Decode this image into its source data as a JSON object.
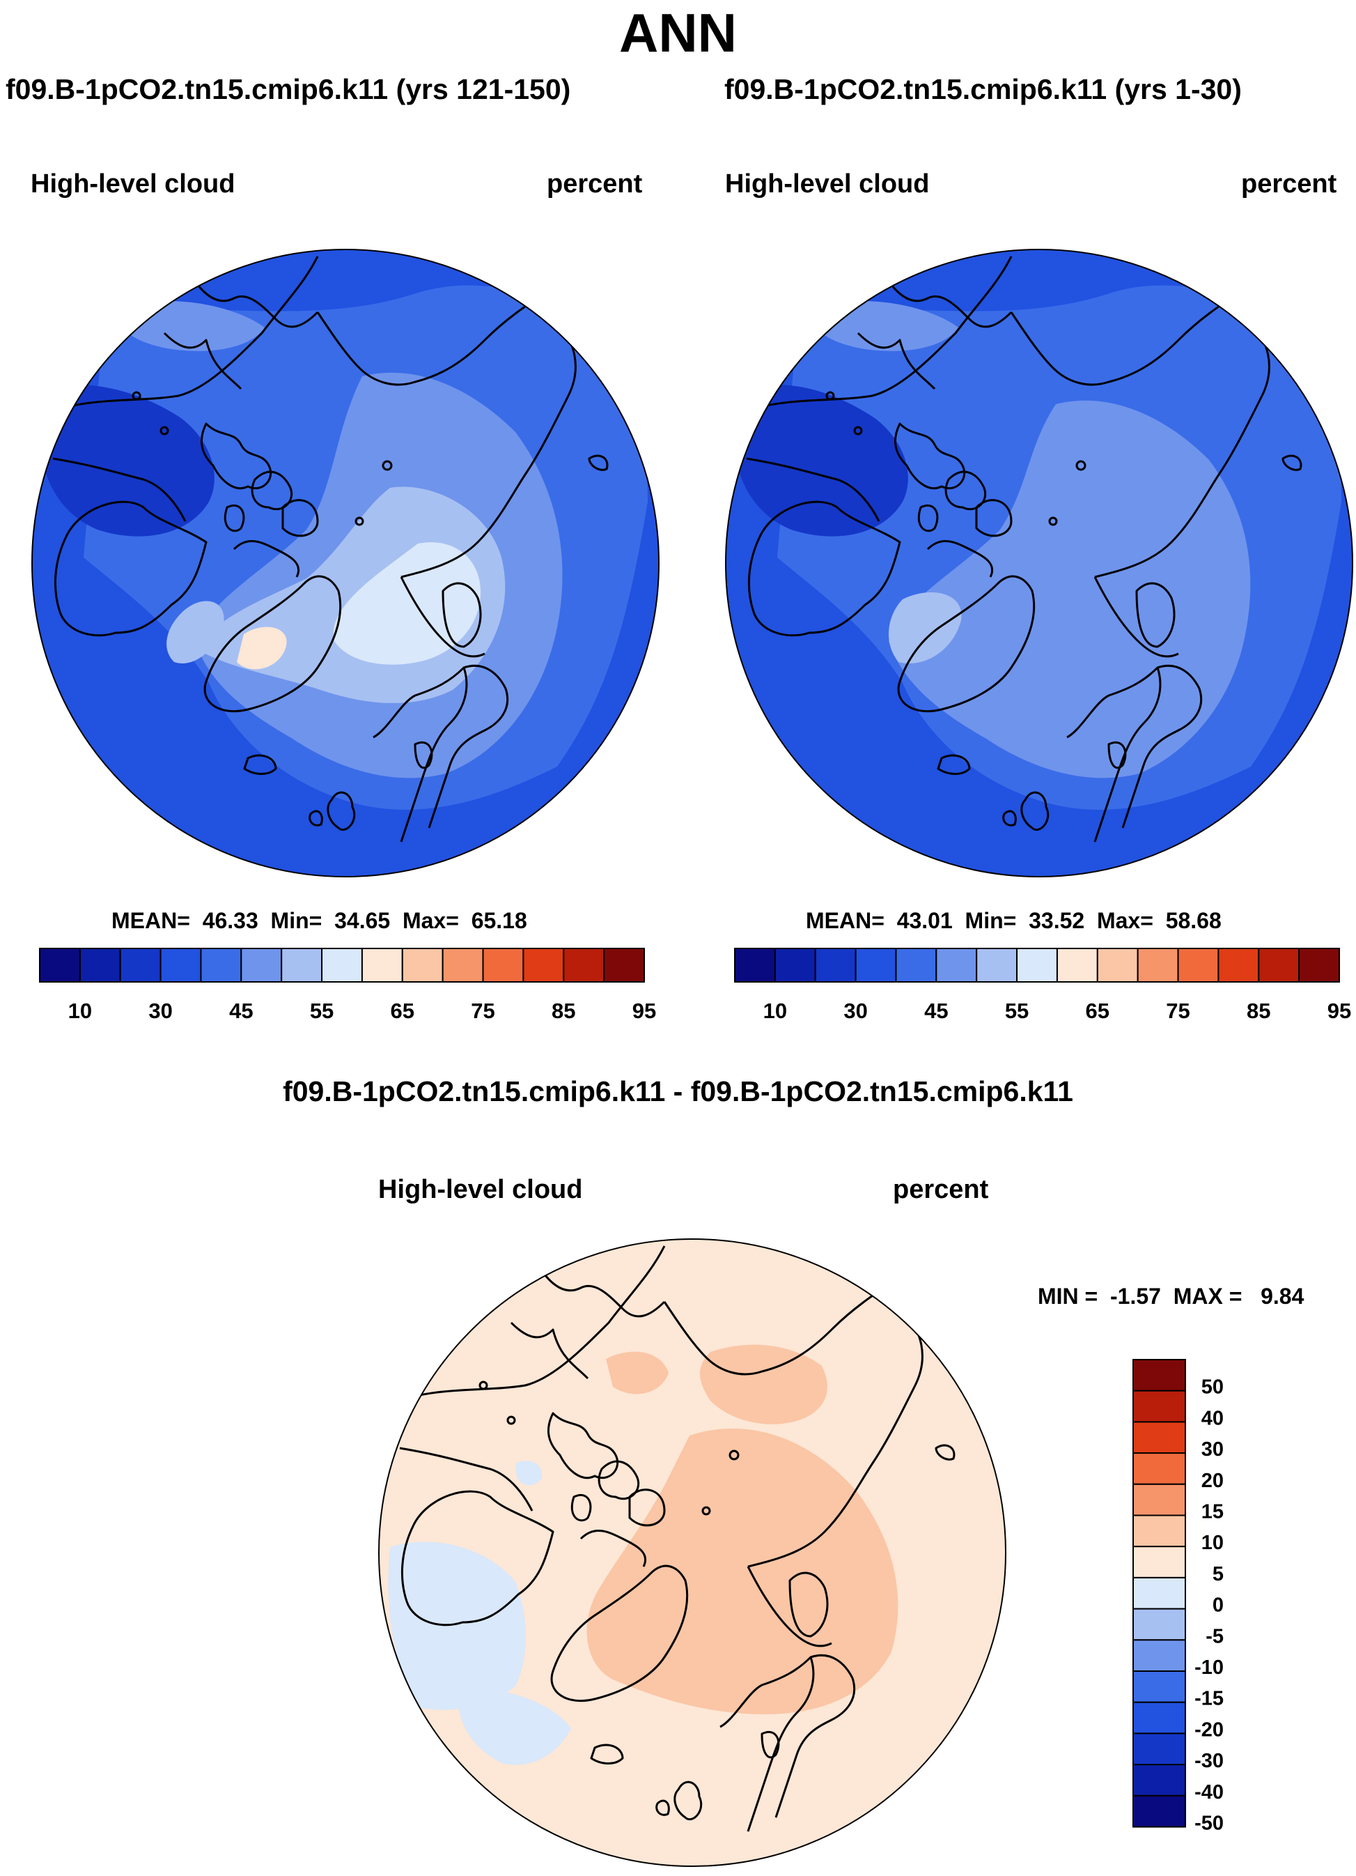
{
  "title": "ANN",
  "colors": {
    "abs_levels": [
      "#0a0a80",
      "#0c1fa8",
      "#1437c8",
      "#2152e0",
      "#3a6ce8",
      "#6f94ec",
      "#a7c0f2",
      "#d9e8fa",
      "#fde7d6",
      "#fac6a6",
      "#f6946a",
      "#f06a3c",
      "#e03c15",
      "#b81e0a",
      "#7e0808"
    ],
    "diff_levels": [
      "#0a0a80",
      "#0c1fa8",
      "#1437c8",
      "#2152e0",
      "#3a6ce8",
      "#6f94ec",
      "#a7c0f2",
      "#d9e8fa",
      "#fde7d6",
      "#fac6a6",
      "#f6946a",
      "#f06a3c",
      "#e03c15",
      "#b81e0a",
      "#7e0808"
    ]
  },
  "panels": [
    {
      "title": "f09.B-1pCO2.tn15.cmip6.k11 (yrs 121-150)",
      "variable": "High-level cloud",
      "units": "percent",
      "stats": {
        "mean_label": "MEAN=",
        "mean": "46.33",
        "min_label": "Min=",
        "min": "34.65",
        "max_label": "Max=",
        "max": "65.18"
      },
      "colorbar_ticks": [
        "10",
        "30",
        "45",
        "55",
        "65",
        "75",
        "85",
        "95"
      ]
    },
    {
      "title": "f09.B-1pCO2.tn15.cmip6.k11 (yrs 1-30)",
      "variable": "High-level cloud",
      "units": "percent",
      "stats": {
        "mean_label": "MEAN=",
        "mean": "43.01",
        "min_label": "Min=",
        "min": "33.52",
        "max_label": "Max=",
        "max": "58.68"
      },
      "colorbar_ticks": [
        "10",
        "30",
        "45",
        "55",
        "65",
        "75",
        "85",
        "95"
      ]
    }
  ],
  "diff": {
    "title": "f09.B-1pCO2.tn15.cmip6.k11 - f09.B-1pCO2.tn15.cmip6.k11",
    "variable": "High-level cloud",
    "units": "percent",
    "stats": {
      "min_label": "MIN =",
      "min": "-1.57",
      "max_label": "MAX =",
      "max": "9.84"
    },
    "colorbar_ticks": [
      "50",
      "40",
      "30",
      "20",
      "15",
      "10",
      "5",
      "0",
      "-5",
      "-10",
      "-15",
      "-20",
      "-30",
      "-40",
      "-50"
    ]
  }
}
